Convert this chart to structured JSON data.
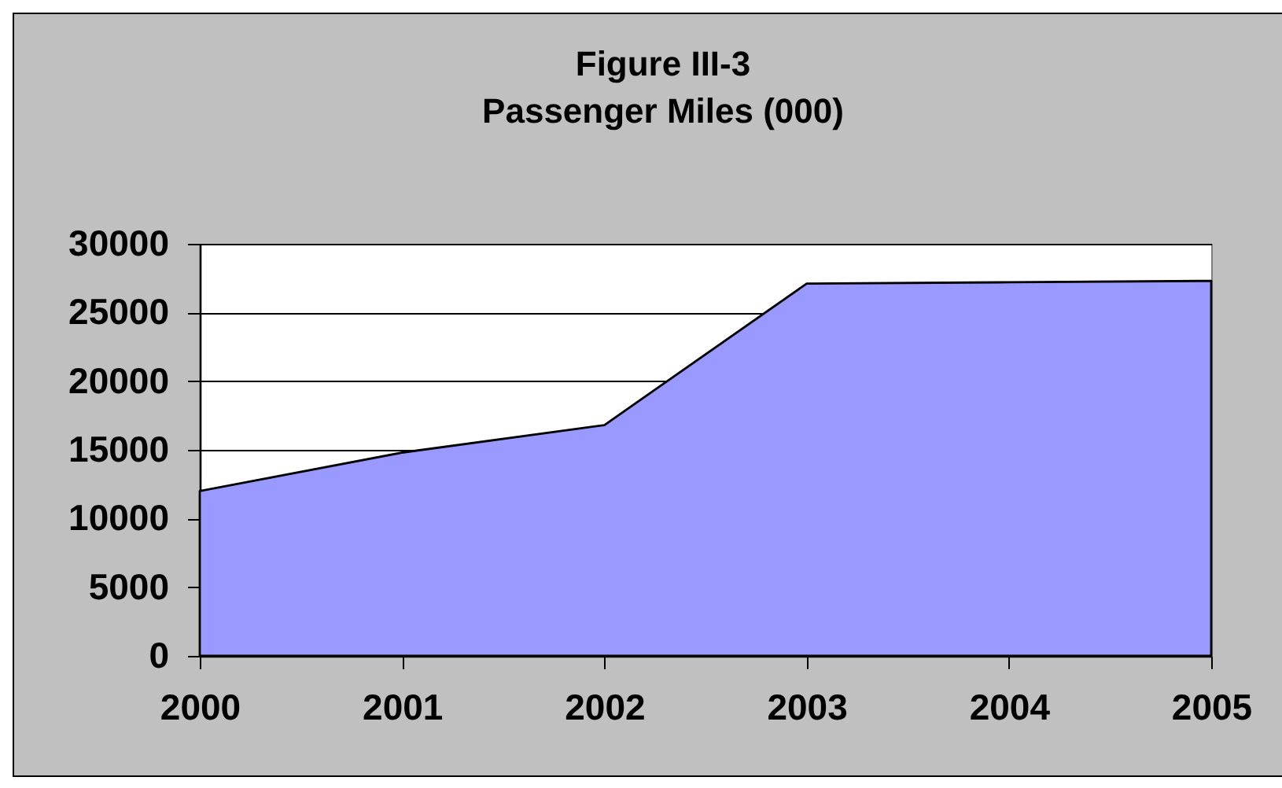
{
  "chart_data": {
    "type": "area",
    "title": "Figure III-3",
    "subtitle": "Passenger Miles (000)",
    "categories": [
      "2000",
      "2001",
      "2002",
      "2003",
      "2004",
      "2005"
    ],
    "series": [
      {
        "color": "#9999ff",
        "values": [
          12000,
          14800,
          16800,
          27100,
          27200,
          27300
        ]
      }
    ],
    "ylim": [
      0,
      30000
    ],
    "yticks": [
      0,
      5000,
      10000,
      15000,
      20000,
      25000,
      30000
    ],
    "grid": "y",
    "legend": false
  }
}
